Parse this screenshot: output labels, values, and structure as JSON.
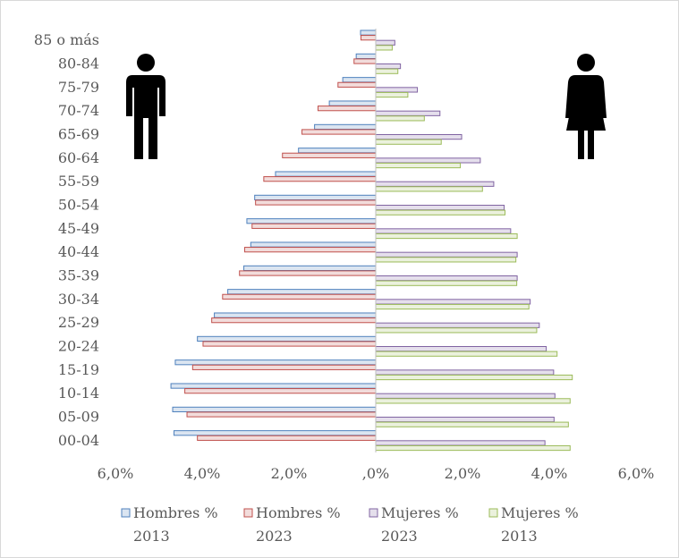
{
  "chart_data": {
    "type": "bar",
    "orientation": "horizontal",
    "categories": [
      "00-04",
      "05-09",
      "10-14",
      "15-19",
      "20-24",
      "25-29",
      "30-34",
      "35-39",
      "40-44",
      "45-49",
      "50-54",
      "55-59",
      "60-64",
      "65-69",
      "70-74",
      "75-79",
      "80-84",
      "85 o más"
    ],
    "series": [
      {
        "name": "Hombres % 2013",
        "values": [
          4.65,
          4.68,
          4.72,
          4.62,
          4.11,
          3.72,
          3.41,
          3.04,
          2.88,
          2.97,
          2.79,
          2.31,
          1.78,
          1.41,
          1.07,
          0.76,
          0.45,
          0.35
        ],
        "color": "#4f81bd",
        "fill": "#dbe5f1"
      },
      {
        "name": "Hombres % 2023",
        "values": [
          4.11,
          4.35,
          4.4,
          4.22,
          3.98,
          3.78,
          3.53,
          3.14,
          3.02,
          2.85,
          2.77,
          2.58,
          2.15,
          1.7,
          1.33,
          0.87,
          0.5,
          0.34
        ],
        "color": "#c0504d",
        "fill": "#f2dcdb"
      },
      {
        "name": "Mujeres % 2023",
        "values": [
          3.9,
          4.11,
          4.13,
          4.1,
          3.93,
          3.77,
          3.56,
          3.26,
          3.26,
          3.11,
          2.96,
          2.72,
          2.41,
          1.98,
          1.48,
          0.96,
          0.57,
          0.44
        ],
        "color": "#8064a2",
        "fill": "#e5dfec"
      },
      {
        "name": "Mujeres % 2013",
        "values": [
          4.48,
          4.44,
          4.48,
          4.53,
          4.18,
          3.71,
          3.53,
          3.25,
          3.23,
          3.26,
          2.98,
          2.46,
          1.95,
          1.51,
          1.12,
          0.74,
          0.51,
          0.38
        ],
        "color": "#9bbb59",
        "fill": "#ebf1dd"
      }
    ],
    "xticks": [
      "6,0%",
      "4,0%",
      "2,0%",
      ",0%",
      "2,0%",
      "4,0%",
      "6,0%"
    ],
    "xlim": [
      -6,
      6
    ],
    "grid": false,
    "legend": {
      "position": "bottom",
      "items": [
        {
          "line1": "Hombres %",
          "line2": "2013"
        },
        {
          "line1": "Hombres %",
          "line2": "2023"
        },
        {
          "line1": "Mujeres %",
          "line2": "2023"
        },
        {
          "line1": "Mujeres %",
          "line2": "2013"
        }
      ]
    },
    "icons": [
      "male-figure-icon",
      "female-figure-icon"
    ]
  }
}
